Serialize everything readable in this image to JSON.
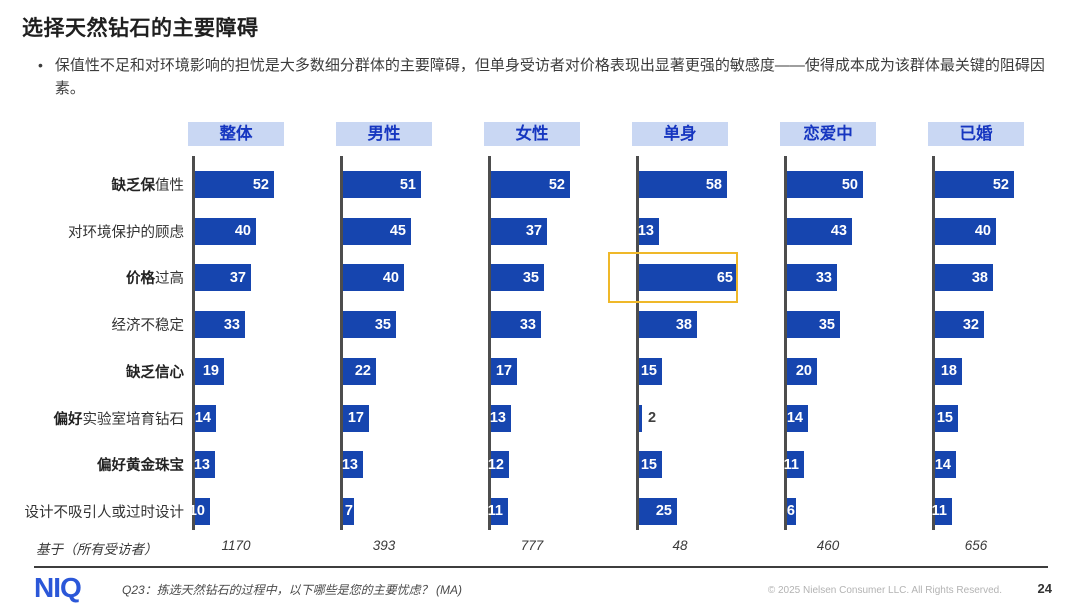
{
  "slide": {
    "title": "选择天然钻石的主要障碍",
    "bullet_marker": "•",
    "bullet": "保值性不足和对环境影响的担忧是大多数细分群体的主要障碍，但单身受访者对价格表现出显著更强的敏感度——使得成本成为该群体最关键的阻碍因素。"
  },
  "chart_data": {
    "type": "bar",
    "orientation": "horizontal",
    "title": "选择天然钻石的主要障碍",
    "xlabel": "",
    "ylabel": "",
    "xlim": [
      0,
      70
    ],
    "grid": false,
    "groups": [
      "整体",
      "男性",
      "女性",
      "单身",
      "恋爱中",
      "已婚"
    ],
    "categories": [
      "缺乏保值性",
      "对环境保护的顾虑",
      "价格过高",
      "经济不稳定",
      "缺乏信心",
      "偏好实验室培育钻石",
      "偏好黄金珠宝",
      "设计不吸引人或过时设计"
    ],
    "category_parts": [
      [
        {
          "t": "缺乏保",
          "b": true
        },
        {
          "t": "值性",
          "b": false
        }
      ],
      [
        {
          "t": "对环境保护的顾虑",
          "b": false
        }
      ],
      [
        {
          "t": "价格",
          "b": true
        },
        {
          "t": "过高",
          "b": false
        }
      ],
      [
        {
          "t": "经济不稳定",
          "b": false
        }
      ],
      [
        {
          "t": "缺乏信心",
          "b": true
        }
      ],
      [
        {
          "t": "偏好",
          "b": true
        },
        {
          "t": "实验室培育钻石",
          "b": false
        }
      ],
      [
        {
          "t": "偏好黄金珠宝",
          "b": true
        }
      ],
      [
        {
          "t": "设计不吸引人或过时设计",
          "b": false
        }
      ]
    ],
    "series": [
      {
        "name": "整体",
        "values": [
          52,
          40,
          37,
          33,
          19,
          14,
          13,
          10
        ]
      },
      {
        "name": "男性",
        "values": [
          51,
          45,
          40,
          35,
          22,
          17,
          13,
          7
        ]
      },
      {
        "name": "女性",
        "values": [
          52,
          37,
          35,
          33,
          17,
          13,
          12,
          11
        ]
      },
      {
        "name": "单身",
        "values": [
          58,
          13,
          65,
          38,
          15,
          2,
          15,
          25
        ]
      },
      {
        "name": "恋爱中",
        "values": [
          50,
          43,
          33,
          35,
          20,
          14,
          11,
          6
        ]
      },
      {
        "name": "已婚",
        "values": [
          52,
          40,
          38,
          32,
          18,
          15,
          14,
          11
        ]
      }
    ],
    "base": {
      "label": "基于（所有受访者）",
      "values": [
        "1170",
        "393",
        "777",
        "48",
        "460",
        "656"
      ]
    },
    "highlight": {
      "group_index": 3,
      "category_index": 2,
      "value": 65
    },
    "colors": {
      "bar": "#1645AF",
      "pill_bg": "#C9D7F3",
      "pill_text": "#1636C0",
      "axis": "#4d4d4d",
      "highlight_border": "#EFB829",
      "value_inside": "#ffffff",
      "value_outside": "#3f3f3f"
    }
  },
  "footer": {
    "logo": "NIQ",
    "question": "Q23：拣选天然钻石的过程中，以下哪些是您的主要忧虑？ (MA)",
    "copyright": "© 2025 Nielsen Consumer LLC. All Rights Reserved.",
    "page": "24"
  }
}
